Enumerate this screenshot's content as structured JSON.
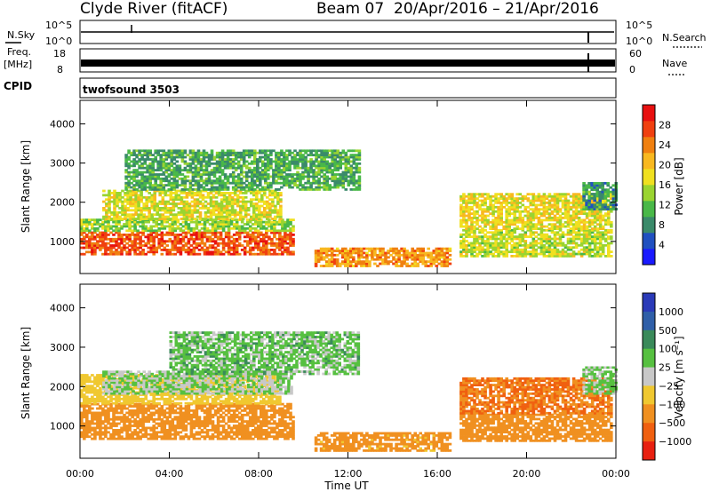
{
  "header": {
    "station": "Clyde River (fitACF)",
    "beam": "Beam 07",
    "date_range": "20/Apr/2016 – 21/Apr/2016"
  },
  "strips": {
    "nsky": {
      "label": "N.Sky",
      "top_tick": "10^5",
      "bottom_tick": "10^0"
    },
    "nsearch": {
      "label": "N.Search",
      "top_tick": "10^5",
      "bottom_tick": "10^0"
    },
    "freq": {
      "label_line1": "Freq.",
      "label_line2": "[MHz]",
      "top_tick": "18",
      "bottom_tick": "8"
    },
    "nave": {
      "label": "Nave",
      "top_tick": "60",
      "bottom_tick": "0"
    },
    "cpid": {
      "label": "CPID",
      "value": "twofsound 3503"
    }
  },
  "axes": {
    "ylabel": "Slant Range [km]",
    "xlabel": "Time UT",
    "yticks": [
      "1000",
      "2000",
      "3000",
      "4000"
    ],
    "xticks": [
      "00:00",
      "04:00",
      "08:00",
      "12:00",
      "16:00",
      "20:00",
      "00:00"
    ]
  },
  "colorbars": {
    "power": {
      "label": "Power [dB]",
      "ticks": [
        "4",
        "8",
        "12",
        "16",
        "20",
        "24",
        "28"
      ],
      "colors": [
        "#1a1aff",
        "#2050c0",
        "#3a8a6a",
        "#49b848",
        "#9ad430",
        "#f0e020",
        "#f8b820",
        "#f08010",
        "#f04010",
        "#e81010"
      ]
    },
    "velocity": {
      "label": "Velocity [m s⁻¹]",
      "ticks": [
        "1000",
        "500",
        "100",
        "25",
        "−25",
        "−100",
        "−500",
        "−1000"
      ],
      "colors": [
        "#2a3ab8",
        "#2f5fa8",
        "#3a8a5a",
        "#56c040",
        "#c8c8c8",
        "#f0c830",
        "#f09020",
        "#f06010",
        "#e82010"
      ]
    }
  },
  "chart_data": [
    {
      "type": "heatmap",
      "title": "Power",
      "x_range": [
        "00:00",
        "24:00"
      ],
      "ylim": [
        180,
        4600
      ],
      "z_range": [
        0,
        30
      ],
      "bands": [
        {
          "t_start": 0.0,
          "t_end": 9.5,
          "range_start": 650,
          "range_end": 1250,
          "power": 26
        },
        {
          "t_start": 0.0,
          "t_end": 9.5,
          "range_start": 1250,
          "range_end": 1550,
          "power": 13
        },
        {
          "t_start": 1.0,
          "t_end": 9.0,
          "range_start": 1550,
          "range_end": 2300,
          "power": 16
        },
        {
          "t_start": 2.0,
          "t_end": 12.5,
          "range_start": 2300,
          "range_end": 3300,
          "power": 9
        },
        {
          "t_start": 10.5,
          "t_end": 16.5,
          "range_start": 350,
          "range_end": 800,
          "power": 22
        },
        {
          "t_start": 17.0,
          "t_end": 23.8,
          "range_start": 600,
          "range_end": 1300,
          "power": 15
        },
        {
          "t_start": 17.0,
          "t_end": 23.8,
          "range_start": 1300,
          "range_end": 2200,
          "power": 17
        },
        {
          "t_start": 22.5,
          "t_end": 24.0,
          "range_start": 1800,
          "range_end": 2500,
          "power": 8
        }
      ]
    },
    {
      "type": "heatmap",
      "title": "Velocity",
      "x_range": [
        "00:00",
        "24:00"
      ],
      "ylim": [
        180,
        4600
      ],
      "z_range": [
        -1000,
        1000
      ],
      "bands": [
        {
          "t_start": 0.0,
          "t_end": 9.5,
          "range_start": 650,
          "range_end": 1550,
          "velocity": -200
        },
        {
          "t_start": 0.0,
          "t_end": 9.0,
          "range_start": 1550,
          "range_end": 2300,
          "velocity": -60
        },
        {
          "t_start": 1.0,
          "t_end": 9.5,
          "range_start": 1800,
          "range_end": 2400,
          "velocity": 0
        },
        {
          "t_start": 4.0,
          "t_end": 12.5,
          "range_start": 2300,
          "range_end": 3400,
          "velocity": 10
        },
        {
          "t_start": 10.5,
          "t_end": 16.5,
          "range_start": 350,
          "range_end": 800,
          "velocity": -150
        },
        {
          "t_start": 17.0,
          "t_end": 23.8,
          "range_start": 600,
          "range_end": 1300,
          "velocity": -350
        },
        {
          "t_start": 17.0,
          "t_end": 23.8,
          "range_start": 1300,
          "range_end": 2200,
          "velocity": -500
        },
        {
          "t_start": 22.5,
          "t_end": 24.0,
          "range_start": 1800,
          "range_end": 2500,
          "velocity": 5
        }
      ]
    }
  ]
}
